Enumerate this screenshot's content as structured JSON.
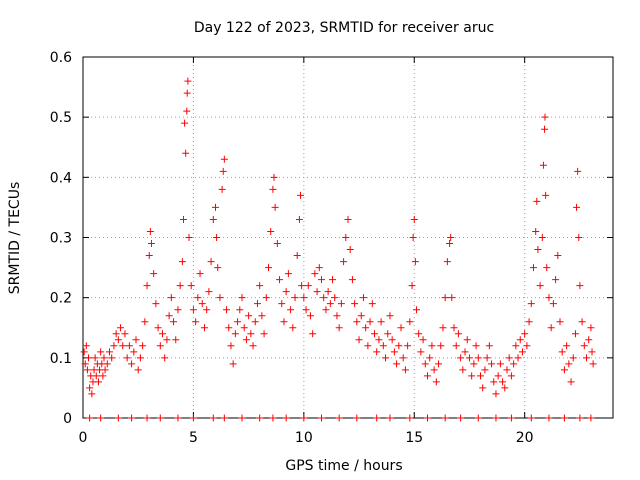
{
  "chart_data": {
    "type": "scatter",
    "title": "Day 122 of 2023, SRMTID for receiver aruc",
    "xlabel": "GPS time / hours",
    "ylabel": "SRMTID / TECUs",
    "xlim": [
      0,
      24
    ],
    "ylim": [
      0,
      0.6
    ],
    "xticks": [
      0,
      5,
      10,
      15,
      20
    ],
    "xtick_labels": [
      "0",
      "5",
      "10",
      "15",
      "20"
    ],
    "yticks": [
      0,
      0.1,
      0.2,
      0.3,
      0.4,
      0.5,
      0.6
    ],
    "ytick_labels": [
      "0",
      "0.1",
      "0.2",
      "0.3",
      "0.4",
      "0.5",
      "0.6"
    ],
    "grid": true,
    "marker": "+",
    "series": [
      {
        "name": "SRMTID",
        "color": "#ff0000",
        "points": [
          [
            0.05,
            0.11
          ],
          [
            0.1,
            0.09
          ],
          [
            0.15,
            0.12
          ],
          [
            0.2,
            0.08
          ],
          [
            0.25,
            0.1
          ],
          [
            0.3,
            0.05
          ],
          [
            0.35,
            0.07
          ],
          [
            0.4,
            0.04
          ],
          [
            0.45,
            0.06
          ],
          [
            0.5,
            0.08
          ],
          [
            0.55,
            0.1
          ],
          [
            0.6,
            0.07
          ],
          [
            0.65,
            0.09
          ],
          [
            0.7,
            0.06
          ],
          [
            0.75,
            0.08
          ],
          [
            0.8,
            0.11
          ],
          [
            0.85,
            0.09
          ],
          [
            0.9,
            0.07
          ],
          [
            0.95,
            0.1
          ],
          [
            1.0,
            0.08
          ],
          [
            1.1,
            0.09
          ],
          [
            1.2,
            0.11
          ],
          [
            1.3,
            0.1
          ],
          [
            1.4,
            0.12
          ],
          [
            1.5,
            0.14
          ],
          [
            1.6,
            0.13
          ],
          [
            1.7,
            0.15
          ],
          [
            1.8,
            0.12
          ],
          [
            1.9,
            0.14
          ],
          [
            2.0,
            0.1
          ],
          [
            2.1,
            0.12
          ],
          [
            2.2,
            0.09
          ],
          [
            2.3,
            0.11
          ],
          [
            2.4,
            0.13
          ],
          [
            2.5,
            0.08
          ],
          [
            2.6,
            0.1
          ],
          [
            2.7,
            0.12
          ],
          [
            2.8,
            0.16
          ],
          [
            2.9,
            0.22
          ],
          [
            3.0,
            0.27
          ],
          [
            3.05,
            0.31
          ],
          [
            3.1,
            0.29
          ],
          [
            3.2,
            0.24
          ],
          [
            3.3,
            0.19
          ],
          [
            3.4,
            0.15
          ],
          [
            3.5,
            0.12
          ],
          [
            3.6,
            0.14
          ],
          [
            3.7,
            0.1
          ],
          [
            3.8,
            0.13
          ],
          [
            3.9,
            0.17
          ],
          [
            4.0,
            0.2
          ],
          [
            4.1,
            0.16
          ],
          [
            4.2,
            0.13
          ],
          [
            4.3,
            0.18
          ],
          [
            4.4,
            0.22
          ],
          [
            4.5,
            0.26
          ],
          [
            4.55,
            0.33
          ],
          [
            4.6,
            0.49
          ],
          [
            4.65,
            0.44
          ],
          [
            4.7,
            0.51
          ],
          [
            4.72,
            0.54
          ],
          [
            4.75,
            0.56
          ],
          [
            4.8,
            0.3
          ],
          [
            4.9,
            0.22
          ],
          [
            5.0,
            0.18
          ],
          [
            5.1,
            0.16
          ],
          [
            5.2,
            0.2
          ],
          [
            5.3,
            0.24
          ],
          [
            5.4,
            0.19
          ],
          [
            5.5,
            0.15
          ],
          [
            5.6,
            0.18
          ],
          [
            5.7,
            0.21
          ],
          [
            5.8,
            0.26
          ],
          [
            5.9,
            0.33
          ],
          [
            6.0,
            0.35
          ],
          [
            6.05,
            0.3
          ],
          [
            6.1,
            0.25
          ],
          [
            6.2,
            0.2
          ],
          [
            6.3,
            0.38
          ],
          [
            6.35,
            0.41
          ],
          [
            6.4,
            0.43
          ],
          [
            6.5,
            0.18
          ],
          [
            6.6,
            0.15
          ],
          [
            6.7,
            0.12
          ],
          [
            6.8,
            0.09
          ],
          [
            6.9,
            0.14
          ],
          [
            7.0,
            0.16
          ],
          [
            7.1,
            0.18
          ],
          [
            7.2,
            0.2
          ],
          [
            7.3,
            0.15
          ],
          [
            7.4,
            0.13
          ],
          [
            7.5,
            0.17
          ],
          [
            7.6,
            0.14
          ],
          [
            7.7,
            0.12
          ],
          [
            7.8,
            0.16
          ],
          [
            7.9,
            0.19
          ],
          [
            8.0,
            0.22
          ],
          [
            8.1,
            0.17
          ],
          [
            8.2,
            0.14
          ],
          [
            8.3,
            0.2
          ],
          [
            8.4,
            0.25
          ],
          [
            8.5,
            0.31
          ],
          [
            8.6,
            0.38
          ],
          [
            8.65,
            0.4
          ],
          [
            8.7,
            0.35
          ],
          [
            8.8,
            0.29
          ],
          [
            8.9,
            0.23
          ],
          [
            9.0,
            0.19
          ],
          [
            9.1,
            0.16
          ],
          [
            9.2,
            0.21
          ],
          [
            9.3,
            0.24
          ],
          [
            9.4,
            0.18
          ],
          [
            9.5,
            0.15
          ],
          [
            9.6,
            0.2
          ],
          [
            9.7,
            0.27
          ],
          [
            9.8,
            0.33
          ],
          [
            9.85,
            0.37
          ],
          [
            9.9,
            0.22
          ],
          [
            10.0,
            0.2
          ],
          [
            10.1,
            0.18
          ],
          [
            10.2,
            0.22
          ],
          [
            10.3,
            0.17
          ],
          [
            10.4,
            0.14
          ],
          [
            10.5,
            0.24
          ],
          [
            10.6,
            0.21
          ],
          [
            10.7,
            0.25
          ],
          [
            10.8,
            0.23
          ],
          [
            10.9,
            0.2
          ],
          [
            11.0,
            0.18
          ],
          [
            11.1,
            0.21
          ],
          [
            11.2,
            0.19
          ],
          [
            11.3,
            0.23
          ],
          [
            11.4,
            0.2
          ],
          [
            11.5,
            0.17
          ],
          [
            11.6,
            0.15
          ],
          [
            11.7,
            0.19
          ],
          [
            11.8,
            0.26
          ],
          [
            11.9,
            0.3
          ],
          [
            12.0,
            0.33
          ],
          [
            12.1,
            0.28
          ],
          [
            12.2,
            0.23
          ],
          [
            12.3,
            0.19
          ],
          [
            12.4,
            0.16
          ],
          [
            12.5,
            0.13
          ],
          [
            12.6,
            0.17
          ],
          [
            12.7,
            0.2
          ],
          [
            12.8,
            0.15
          ],
          [
            12.9,
            0.12
          ],
          [
            13.0,
            0.16
          ],
          [
            13.1,
            0.19
          ],
          [
            13.2,
            0.14
          ],
          [
            13.3,
            0.11
          ],
          [
            13.4,
            0.13
          ],
          [
            13.5,
            0.16
          ],
          [
            13.6,
            0.12
          ],
          [
            13.7,
            0.1
          ],
          [
            13.8,
            0.14
          ],
          [
            13.9,
            0.17
          ],
          [
            14.0,
            0.13
          ],
          [
            14.1,
            0.11
          ],
          [
            14.2,
            0.09
          ],
          [
            14.3,
            0.12
          ],
          [
            14.4,
            0.15
          ],
          [
            14.5,
            0.1
          ],
          [
            14.6,
            0.08
          ],
          [
            14.7,
            0.12
          ],
          [
            14.8,
            0.16
          ],
          [
            14.9,
            0.22
          ],
          [
            14.95,
            0.3
          ],
          [
            15.0,
            0.33
          ],
          [
            15.05,
            0.26
          ],
          [
            15.1,
            0.18
          ],
          [
            15.2,
            0.14
          ],
          [
            15.3,
            0.11
          ],
          [
            15.4,
            0.13
          ],
          [
            15.5,
            0.09
          ],
          [
            15.6,
            0.07
          ],
          [
            15.7,
            0.1
          ],
          [
            15.8,
            0.12
          ],
          [
            15.9,
            0.08
          ],
          [
            16.0,
            0.06
          ],
          [
            16.1,
            0.09
          ],
          [
            16.2,
            0.12
          ],
          [
            16.3,
            0.15
          ],
          [
            16.4,
            0.2
          ],
          [
            16.5,
            0.26
          ],
          [
            16.6,
            0.29
          ],
          [
            16.65,
            0.3
          ],
          [
            16.7,
            0.2
          ],
          [
            16.8,
            0.15
          ],
          [
            16.9,
            0.12
          ],
          [
            17.0,
            0.14
          ],
          [
            17.1,
            0.1
          ],
          [
            17.2,
            0.08
          ],
          [
            17.3,
            0.11
          ],
          [
            17.4,
            0.13
          ],
          [
            17.5,
            0.1
          ],
          [
            17.6,
            0.07
          ],
          [
            17.7,
            0.09
          ],
          [
            17.8,
            0.12
          ],
          [
            17.9,
            0.1
          ],
          [
            18.0,
            0.07
          ],
          [
            18.1,
            0.05
          ],
          [
            18.2,
            0.08
          ],
          [
            18.3,
            0.1
          ],
          [
            18.4,
            0.12
          ],
          [
            18.5,
            0.09
          ],
          [
            18.6,
            0.06
          ],
          [
            18.7,
            0.04
          ],
          [
            18.8,
            0.07
          ],
          [
            18.9,
            0.09
          ],
          [
            19.0,
            0.06
          ],
          [
            19.1,
            0.05
          ],
          [
            19.2,
            0.08
          ],
          [
            19.3,
            0.1
          ],
          [
            19.4,
            0.07
          ],
          [
            19.5,
            0.09
          ],
          [
            19.6,
            0.12
          ],
          [
            19.7,
            0.1
          ],
          [
            19.8,
            0.13
          ],
          [
            19.9,
            0.11
          ],
          [
            20.0,
            0.14
          ],
          [
            20.1,
            0.12
          ],
          [
            20.2,
            0.16
          ],
          [
            20.3,
            0.19
          ],
          [
            20.4,
            0.25
          ],
          [
            20.5,
            0.31
          ],
          [
            20.55,
            0.36
          ],
          [
            20.6,
            0.28
          ],
          [
            20.7,
            0.22
          ],
          [
            20.8,
            0.3
          ],
          [
            20.85,
            0.42
          ],
          [
            20.9,
            0.48
          ],
          [
            20.92,
            0.5
          ],
          [
            20.95,
            0.37
          ],
          [
            21.0,
            0.25
          ],
          [
            21.1,
            0.2
          ],
          [
            21.2,
            0.15
          ],
          [
            21.3,
            0.19
          ],
          [
            21.4,
            0.23
          ],
          [
            21.5,
            0.27
          ],
          [
            21.6,
            0.16
          ],
          [
            21.7,
            0.11
          ],
          [
            21.8,
            0.08
          ],
          [
            21.9,
            0.12
          ],
          [
            22.0,
            0.09
          ],
          [
            22.1,
            0.06
          ],
          [
            22.2,
            0.1
          ],
          [
            22.3,
            0.14
          ],
          [
            22.35,
            0.35
          ],
          [
            22.4,
            0.41
          ],
          [
            22.45,
            0.3
          ],
          [
            22.5,
            0.22
          ],
          [
            22.6,
            0.16
          ],
          [
            22.7,
            0.12
          ],
          [
            22.8,
            0.1
          ],
          [
            22.9,
            0.13
          ],
          [
            23.0,
            0.15
          ],
          [
            23.05,
            0.11
          ],
          [
            23.1,
            0.09
          ],
          [
            0.3,
            0
          ],
          [
            0.8,
            0
          ],
          [
            1.6,
            0
          ],
          [
            2.2,
            0
          ],
          [
            2.9,
            0
          ],
          [
            3.5,
            0
          ],
          [
            4.3,
            0
          ],
          [
            5.0,
            0
          ],
          [
            5.9,
            0
          ],
          [
            6.4,
            0
          ],
          [
            7.2,
            0
          ],
          [
            8.0,
            0
          ],
          [
            8.6,
            0
          ],
          [
            9.2,
            0
          ],
          [
            10.0,
            0
          ],
          [
            10.8,
            0
          ],
          [
            11.6,
            0
          ],
          [
            12.4,
            0
          ],
          [
            13.3,
            0
          ],
          [
            13.9,
            0
          ],
          [
            14.8,
            0
          ],
          [
            15.6,
            0
          ],
          [
            16.4,
            0
          ],
          [
            17.1,
            0
          ],
          [
            17.9,
            0
          ],
          [
            18.7,
            0
          ],
          [
            19.4,
            0
          ],
          [
            20.3,
            0
          ],
          [
            21.1,
            0
          ],
          [
            21.8,
            0
          ],
          [
            22.5,
            0
          ],
          [
            23.0,
            0
          ]
        ]
      }
    ]
  }
}
